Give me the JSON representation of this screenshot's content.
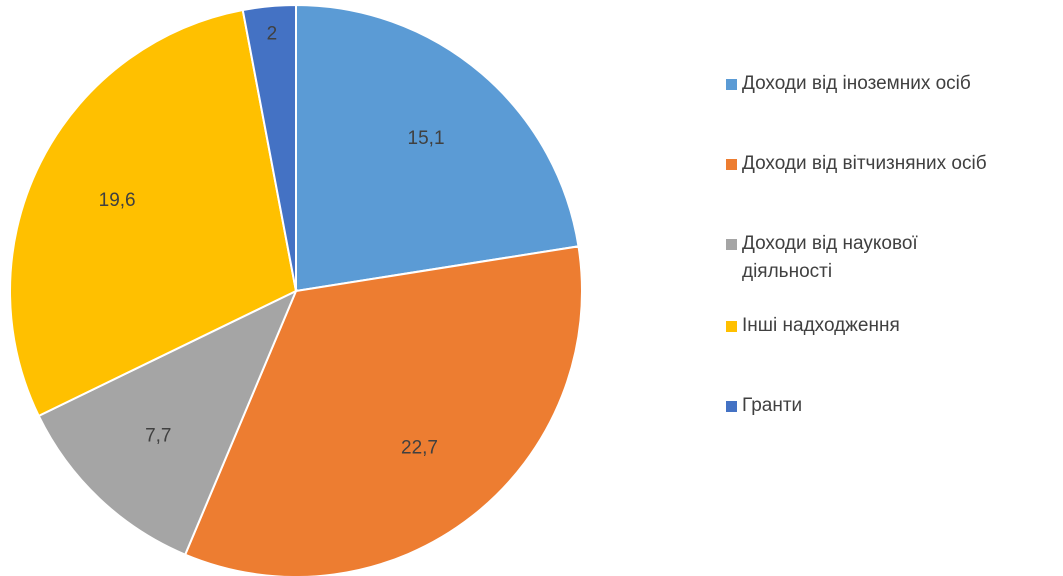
{
  "chart_data": {
    "type": "pie",
    "categories": [
      "Доходи від іноземних осіб",
      "Доходи від вітчизняних осіб",
      "Доходи від наукової діяльності",
      "Інші надходження",
      "Гранти"
    ],
    "values": [
      15.1,
      22.7,
      7.7,
      19.6,
      2
    ],
    "value_labels": [
      "15,1",
      "22,7",
      "7,7",
      "19,6",
      "2"
    ],
    "colors": [
      "#5b9bd5",
      "#ed7d31",
      "#a5a5a5",
      "#ffc000",
      "#4472c4"
    ],
    "legend": "right"
  }
}
